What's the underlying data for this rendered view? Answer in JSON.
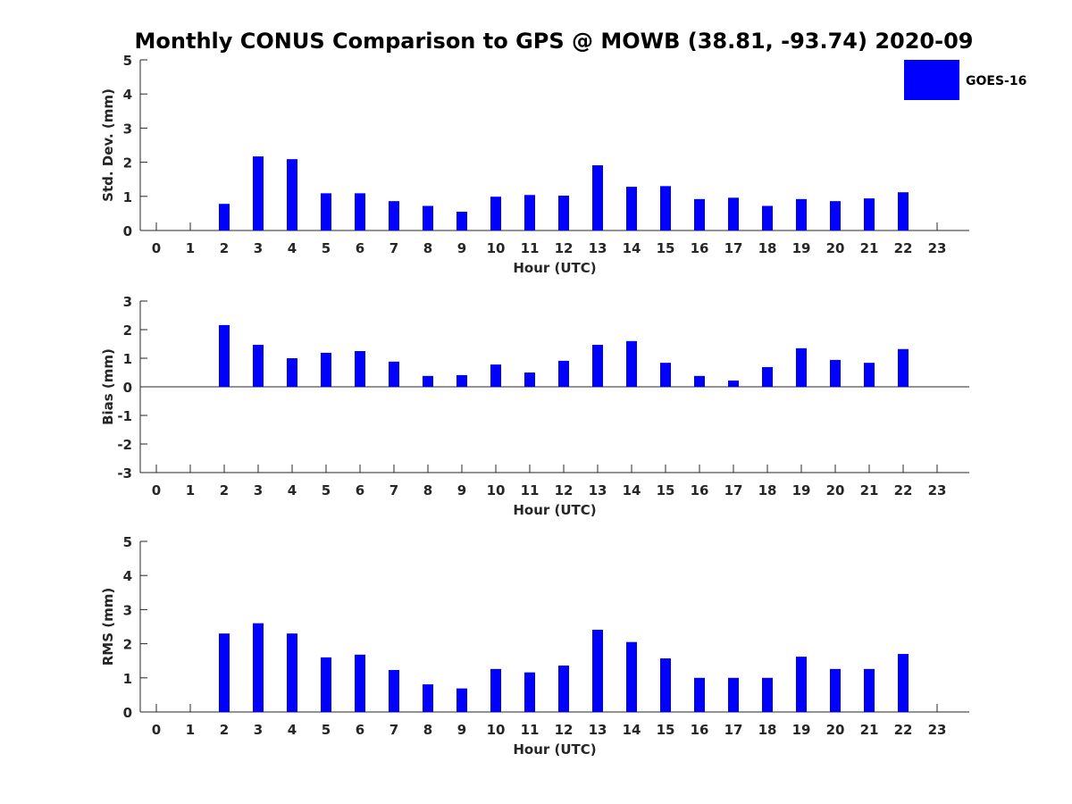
{
  "title": "Monthly CONUS Comparison to GPS @ MOWB (38.81, -93.74) 2020-09",
  "colors": {
    "bar": "#0000ff",
    "axis": "#262626"
  },
  "legend": {
    "label": "GOES-16",
    "placement": "top-right"
  },
  "chart_data": [
    {
      "type": "bar",
      "xlabel": "Hour (UTC)",
      "ylabel": "Std. Dev. (mm)",
      "ylim": [
        0,
        5
      ],
      "yticks": [
        0,
        1,
        2,
        3,
        4,
        5
      ],
      "categories": [
        "0",
        "1",
        "2",
        "3",
        "4",
        "5",
        "6",
        "7",
        "8",
        "9",
        "10",
        "11",
        "12",
        "13",
        "14",
        "15",
        "16",
        "17",
        "18",
        "19",
        "20",
        "21",
        "22",
        "23"
      ],
      "series": [
        {
          "name": "GOES-16",
          "values": [
            null,
            null,
            0.78,
            2.17,
            2.09,
            1.09,
            1.09,
            0.86,
            0.72,
            0.55,
            0.99,
            1.04,
            1.02,
            1.91,
            1.28,
            1.3,
            0.92,
            0.96,
            0.72,
            0.92,
            0.86,
            0.94,
            1.12,
            null
          ]
        }
      ]
    },
    {
      "type": "bar",
      "xlabel": "Hour (UTC)",
      "ylabel": "Bias (mm)",
      "ylim": [
        -3,
        3
      ],
      "yticks": [
        -3,
        -2,
        -1,
        0,
        1,
        2,
        3
      ],
      "categories": [
        "0",
        "1",
        "2",
        "3",
        "4",
        "5",
        "6",
        "7",
        "8",
        "9",
        "10",
        "11",
        "12",
        "13",
        "14",
        "15",
        "16",
        "17",
        "18",
        "19",
        "20",
        "21",
        "22",
        "23"
      ],
      "series": [
        {
          "name": "GOES-16",
          "values": [
            null,
            null,
            2.16,
            1.47,
            1.0,
            1.19,
            1.25,
            0.88,
            0.38,
            0.41,
            0.78,
            0.5,
            0.91,
            1.47,
            1.6,
            0.84,
            0.38,
            0.22,
            0.69,
            1.35,
            0.94,
            0.84,
            1.32,
            null
          ]
        }
      ]
    },
    {
      "type": "bar",
      "xlabel": "Hour (UTC)",
      "ylabel": "RMS (mm)",
      "ylim": [
        0,
        5
      ],
      "yticks": [
        0,
        1,
        2,
        3,
        4,
        5
      ],
      "categories": [
        "0",
        "1",
        "2",
        "3",
        "4",
        "5",
        "6",
        "7",
        "8",
        "9",
        "10",
        "11",
        "12",
        "13",
        "14",
        "15",
        "16",
        "17",
        "18",
        "19",
        "20",
        "21",
        "22",
        "23"
      ],
      "series": [
        {
          "name": "GOES-16",
          "values": [
            null,
            null,
            2.3,
            2.6,
            2.3,
            1.6,
            1.68,
            1.23,
            0.81,
            0.69,
            1.26,
            1.16,
            1.36,
            2.41,
            2.05,
            1.57,
            1.0,
            1.0,
            1.0,
            1.62,
            1.26,
            1.26,
            1.7,
            null
          ]
        }
      ]
    }
  ]
}
